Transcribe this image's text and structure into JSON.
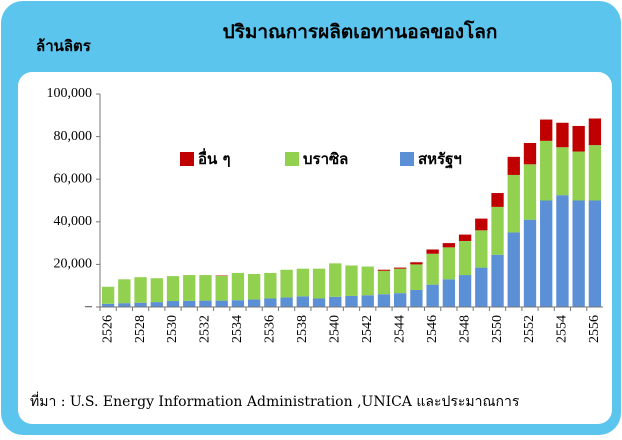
{
  "chart_data": {
    "type": "bar",
    "stacked": true,
    "title": "ปริมาณการผลิตเอทานอลของโลก",
    "y_label": "ล้านลิตร",
    "source": "ที่มา : U.S. Energy Information Administration ,UNICA และประมาณการ",
    "categories": [
      "2526",
      null,
      "2528",
      null,
      "2530",
      null,
      "2532",
      null,
      "2534",
      null,
      "2536",
      null,
      "2538",
      null,
      "2540",
      null,
      "2542",
      null,
      "2544",
      null,
      "2546",
      null,
      "2548",
      null,
      "2550",
      null,
      "2552",
      null,
      "2554",
      null,
      "2556"
    ],
    "series": [
      {
        "name": "สหรัฐฯ",
        "color": "#5b8fd6",
        "values": [
          1500,
          1800,
          2000,
          2300,
          2800,
          2900,
          3000,
          3000,
          3200,
          3500,
          4000,
          4500,
          5000,
          4000,
          4800,
          5200,
          5500,
          6000,
          6500,
          8000,
          10500,
          13000,
          15000,
          18500,
          24500,
          35000,
          41000,
          50000,
          52500,
          50000,
          50000
        ]
      },
      {
        "name": "บราซิล",
        "color": "#92d050",
        "values": [
          8000,
          11200,
          12000,
          11200,
          11700,
          12100,
          12000,
          11600,
          12800,
          12000,
          12000,
          13000,
          13000,
          14000,
          15700,
          14300,
          13500,
          11000,
          11500,
          12000,
          14500,
          15000,
          16000,
          17500,
          22500,
          27000,
          26000,
          28000,
          22500,
          23000,
          26000
        ]
      },
      {
        "name": "อื่น ๆ",
        "color": "#c00000",
        "values": [
          0,
          0,
          0,
          0,
          0,
          0,
          0,
          200,
          0,
          0,
          0,
          0,
          0,
          0,
          0,
          0,
          0,
          500,
          500,
          1000,
          2000,
          2000,
          3000,
          5500,
          6500,
          8500,
          10000,
          10000,
          11500,
          12000,
          12500
        ]
      }
    ],
    "ylim": [
      0,
      100000
    ],
    "yticks": [
      {
        "value": 0,
        "label": "–"
      },
      {
        "value": 20000,
        "label": "20,000"
      },
      {
        "value": 40000,
        "label": "40,000"
      },
      {
        "value": 60000,
        "label": "60,000"
      },
      {
        "value": 80000,
        "label": "80,000"
      },
      {
        "value": 100000,
        "label": "100,000"
      }
    ]
  }
}
